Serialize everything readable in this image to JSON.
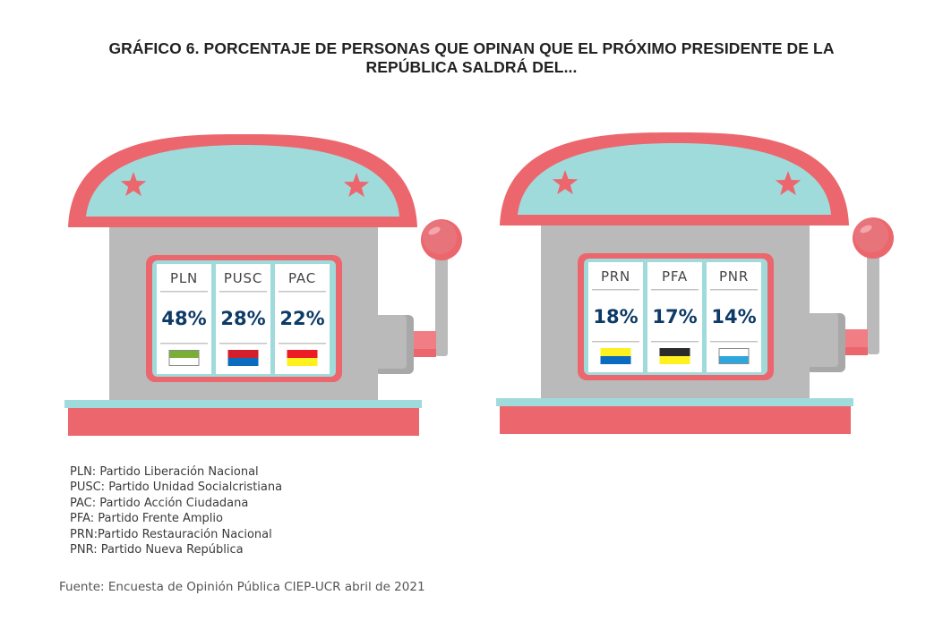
{
  "title": {
    "line1": "GRÁFICO 6. PORCENTAJE DE PERSONAS QUE OPINAN QUE EL PRÓXIMO PRESIDENTE DE LA",
    "line2": "REPÚBLICA SALDRÁ DEL..."
  },
  "colors": {
    "machine_pink": "#ec676d",
    "machine_teal": "#a0dbdc",
    "machine_gray": "#bababa",
    "machine_gray_dark": "#a8a8a8",
    "lever_pink_light": "#f07e84",
    "percent_text": "#0d3a66"
  },
  "chart_data": {
    "type": "table",
    "title": "GRÁFICO 6. PORCENTAJE DE PERSONAS QUE OPINAN QUE EL PRÓXIMO PRESIDENTE DE LA REPÚBLICA SALDRÁ DEL...",
    "unit": "%",
    "machines": [
      {
        "name": "machine-left",
        "reels": [
          {
            "party": "PLN",
            "value": 48,
            "label": "48%",
            "flag": [
              "#7aaf35",
              "#ffffff"
            ],
            "flag_border": true
          },
          {
            "party": "PUSC",
            "value": 28,
            "label": "28%",
            "flag": [
              "#d21f2b",
              "#0b6cbf"
            ],
            "flag_border": false
          },
          {
            "party": "PAC",
            "value": 22,
            "label": "22%",
            "flag": [
              "#ed1c24",
              "#fff01f"
            ],
            "flag_border": false
          }
        ]
      },
      {
        "name": "machine-right",
        "reels": [
          {
            "party": "PRN",
            "value": 18,
            "label": "18%",
            "flag": [
              "#fff01f",
              "#0b6cbf"
            ],
            "flag_border": false
          },
          {
            "party": "PFA",
            "value": 17,
            "label": "17%",
            "flag": [
              "#2b2b2b",
              "#fff01f"
            ],
            "flag_border": false
          },
          {
            "party": "PNR",
            "value": 14,
            "label": "14%",
            "flag": [
              "#ffffff",
              "#2ea6df"
            ],
            "flag_border": true
          }
        ]
      }
    ],
    "categories": [
      "PLN",
      "PUSC",
      "PAC",
      "PRN",
      "PFA",
      "PNR"
    ],
    "values": [
      48,
      28,
      22,
      18,
      17,
      14
    ]
  },
  "legend": [
    "PLN: Partido Liberación Nacional",
    "PUSC: Partido Unidad Socialcristiana",
    "PAC: Partido Acción Ciudadana",
    "PFA: Partido Frente Amplio",
    "PRN:Partido Restauración Nacional",
    "PNR: Partido Nueva República"
  ],
  "source": "Fuente: Encuesta de Opinión Pública CIEP-UCR abril de 2021"
}
